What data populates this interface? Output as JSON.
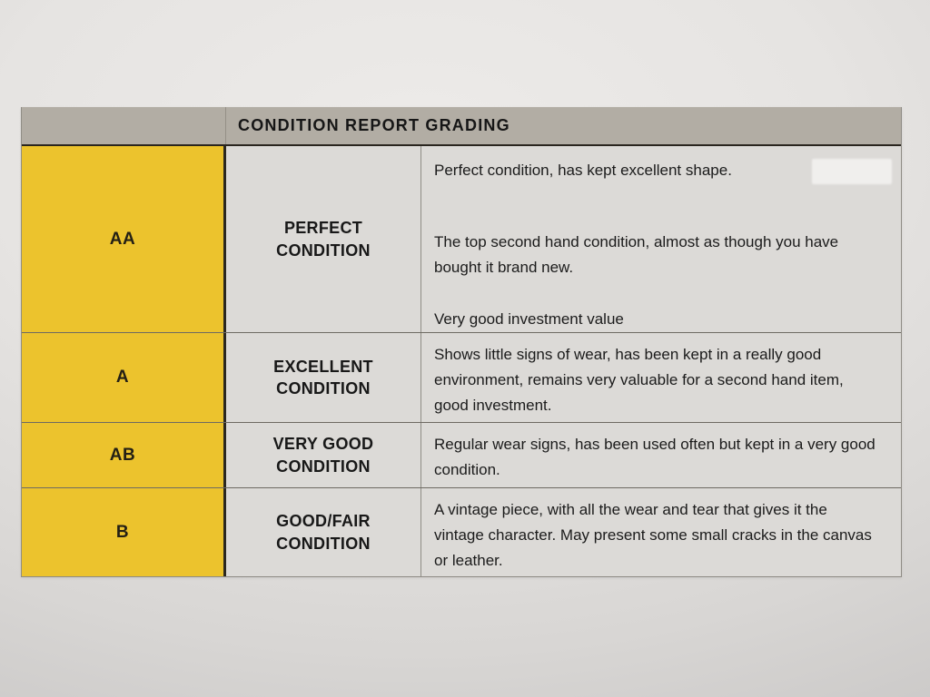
{
  "document": {
    "title": "CONDITION REPORT GRADING",
    "grades": [
      {
        "code": "AA",
        "label": "PERFECT\nCONDITION",
        "paragraphs": [
          "Perfect condition, has kept excellent shape.",
          "The top second hand condition, almost as though you have bought it brand new.",
          "Very good investment value"
        ]
      },
      {
        "code": "A",
        "label": "EXCELLENT\nCONDITION",
        "paragraphs": [
          "Shows little signs of wear, has been kept in a really good environment, remains very valuable for a second hand item, good investment."
        ]
      },
      {
        "code": "AB",
        "label": "VERY GOOD\nCONDITION",
        "paragraphs": [
          "Regular wear signs, has been used often but kept in a very good condition."
        ]
      },
      {
        "code": "B",
        "label": "GOOD/FAIR\nCONDITION",
        "paragraphs": [
          "A vintage piece, with all the wear and tear that gives it the vintage character. May present some small cracks in the canvas or leather."
        ]
      }
    ],
    "colors": {
      "grade_column_bg": "#ecc32d",
      "header_bg": "#b2ada4",
      "cell_bg": "#dcdad7",
      "text": "#1c1c1c"
    }
  }
}
